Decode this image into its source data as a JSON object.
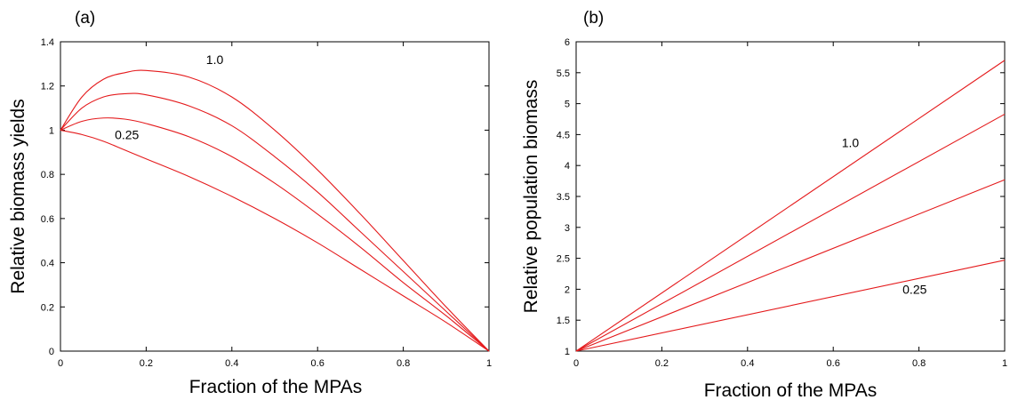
{
  "chart_data": [
    {
      "type": "line",
      "panel_label": "(a)",
      "xlabel": "Fraction of the MPAs",
      "ylabel": "Relative biomass yields",
      "xlim": [
        0,
        1
      ],
      "ylim": [
        0,
        1.4
      ],
      "xticks": [
        0,
        0.2,
        0.4,
        0.6,
        0.8,
        1
      ],
      "xtick_labels": [
        "0",
        "0.2",
        "0.4",
        "0.6",
        "0.8",
        "1"
      ],
      "yticks": [
        0,
        0.2,
        0.4,
        0.6,
        0.8,
        1,
        1.2,
        1.4
      ],
      "ytick_labels": [
        "0",
        "0.2",
        "0.4",
        "0.6",
        "0.8",
        "1",
        "1.2",
        "1.4"
      ],
      "color": "#e41a1c",
      "series": [
        {
          "x": [
            0,
            0.05,
            0.1,
            0.15,
            0.2,
            0.3,
            0.4,
            0.5,
            0.6,
            0.7,
            0.8,
            0.9,
            1.0
          ],
          "values": [
            1.0,
            1.15,
            1.23,
            1.26,
            1.27,
            1.24,
            1.15,
            1.0,
            0.82,
            0.62,
            0.41,
            0.2,
            0.0
          ]
        },
        {
          "x": [
            0,
            0.05,
            0.1,
            0.15,
            0.2,
            0.3,
            0.4,
            0.5,
            0.6,
            0.7,
            0.8,
            0.9,
            1.0
          ],
          "values": [
            1.0,
            1.1,
            1.15,
            1.165,
            1.16,
            1.11,
            1.02,
            0.88,
            0.72,
            0.54,
            0.36,
            0.18,
            0.0
          ]
        },
        {
          "x": [
            0,
            0.05,
            0.1,
            0.15,
            0.2,
            0.3,
            0.4,
            0.5,
            0.6,
            0.7,
            0.8,
            0.9,
            1.0
          ],
          "values": [
            1.0,
            1.04,
            1.055,
            1.05,
            1.03,
            0.97,
            0.88,
            0.76,
            0.62,
            0.47,
            0.31,
            0.16,
            0.0
          ]
        },
        {
          "x": [
            0,
            0.05,
            0.1,
            0.15,
            0.2,
            0.3,
            0.4,
            0.5,
            0.6,
            0.7,
            0.8,
            0.9,
            1.0
          ],
          "values": [
            1.0,
            0.98,
            0.95,
            0.91,
            0.87,
            0.79,
            0.7,
            0.6,
            0.49,
            0.37,
            0.25,
            0.13,
            0.0
          ]
        }
      ],
      "annotations": [
        {
          "text": "1.0",
          "x": 0.36,
          "y": 1.3
        },
        {
          "text": "0.25",
          "x": 0.155,
          "y": 0.96
        }
      ]
    },
    {
      "type": "line",
      "panel_label": "(b)",
      "xlabel": "Fraction of the MPAs",
      "ylabel": "Relative population biomass",
      "xlim": [
        0,
        1
      ],
      "ylim": [
        1,
        6
      ],
      "xticks": [
        0,
        0.2,
        0.4,
        0.6,
        0.8,
        1
      ],
      "xtick_labels": [
        "0",
        "0.2",
        "0.4",
        "0.6",
        "0.8",
        "1"
      ],
      "yticks": [
        1,
        1.5,
        2,
        2.5,
        3,
        3.5,
        4,
        4.5,
        5,
        5.5,
        6
      ],
      "ytick_labels": [
        "1",
        "1.5",
        "2",
        "2.5",
        "3",
        "3.5",
        "4",
        "4.5",
        "5",
        "5.5",
        "6"
      ],
      "color": "#e41a1c",
      "series": [
        {
          "x": [
            0,
            1
          ],
          "values": [
            1.0,
            5.7
          ]
        },
        {
          "x": [
            0,
            1
          ],
          "values": [
            1.0,
            4.83
          ]
        },
        {
          "x": [
            0,
            1
          ],
          "values": [
            1.0,
            3.77
          ]
        },
        {
          "x": [
            0,
            1
          ],
          "values": [
            1.0,
            2.47
          ]
        }
      ],
      "annotations": [
        {
          "text": "1.0",
          "x": 0.64,
          "y": 4.3
        },
        {
          "text": "0.25",
          "x": 0.79,
          "y": 1.93
        }
      ]
    }
  ]
}
